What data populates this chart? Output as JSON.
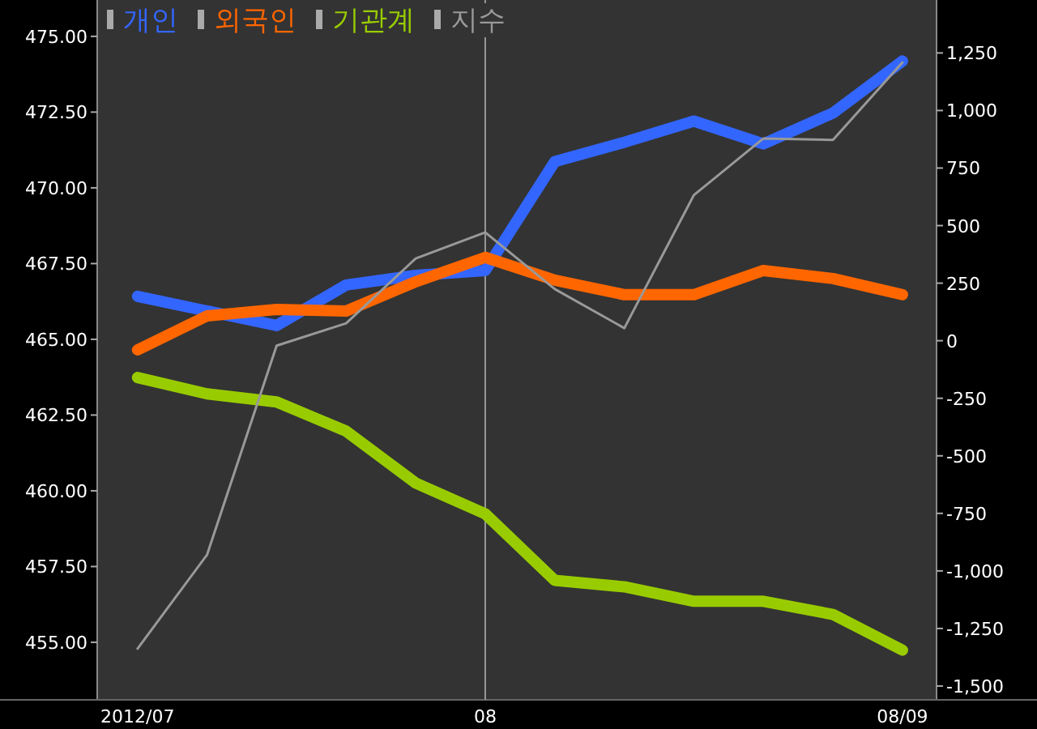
{
  "chart_data": {
    "type": "line",
    "categories": [
      "2012/07",
      null,
      null,
      null,
      null,
      "08",
      null,
      null,
      null,
      null,
      null,
      "08/09"
    ],
    "series": [
      {
        "name": "개인",
        "color": "#3366ff",
        "axis": "y2",
        "values": [
          193,
          129,
          66,
          242,
          284,
          305,
          778,
          862,
          954,
          855,
          989,
          1215
        ]
      },
      {
        "name": "외국인",
        "color": "#ff6600",
        "axis": "y2",
        "values": [
          -40,
          108,
          136,
          129,
          256,
          362,
          263,
          200,
          200,
          305,
          270,
          200
        ]
      },
      {
        "name": "기관계",
        "color": "#99cc00",
        "axis": "y2",
        "values": [
          -160,
          -231,
          -266,
          -393,
          -618,
          -752,
          -1041,
          -1069,
          -1132,
          -1132,
          -1189,
          -1344
        ]
      },
      {
        "name": "지수",
        "color": "#999999",
        "axis": "y",
        "values": [
          454.79,
          457.89,
          464.79,
          465.53,
          467.67,
          468.53,
          466.66,
          465.37,
          469.76,
          471.63,
          471.58,
          474.14
        ]
      }
    ],
    "ylim": [
      453.1,
      476.2
    ],
    "yticks": [
      {
        "value": 455,
        "label": "455.00"
      },
      {
        "value": 457.5,
        "label": "457.50"
      },
      {
        "value": 460,
        "label": "460.00"
      },
      {
        "value": 462.5,
        "label": "462.50"
      },
      {
        "value": 465,
        "label": "465.00"
      },
      {
        "value": 467.5,
        "label": "467.50"
      },
      {
        "value": 470,
        "label": "470.00"
      },
      {
        "value": 472.5,
        "label": "472.50"
      },
      {
        "value": 475,
        "label": "475.00"
      }
    ],
    "y2lim": [
      -1560,
      1480
    ],
    "y2ticks": [
      {
        "value": -1500,
        "label": "-1,500"
      },
      {
        "value": -1250,
        "label": "-1,250"
      },
      {
        "value": -1000,
        "label": "-1,000"
      },
      -750,
      -500,
      -250,
      0,
      250,
      500,
      750,
      {
        "value": 1000,
        "label": "1,000"
      },
      {
        "value": 1250,
        "label": "1,250"
      }
    ],
    "ref_lines": [
      {
        "axis": "x",
        "value": "08",
        "color": "#999999"
      }
    ],
    "legend": "top left",
    "grid": false,
    "marker": "none",
    "line_style": "solid"
  }
}
